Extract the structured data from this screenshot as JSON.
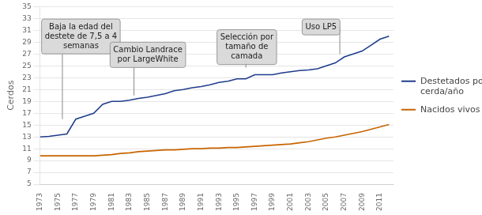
{
  "chart_data": {
    "type": "line",
    "x": [
      1973,
      1974,
      1975,
      1976,
      1977,
      1978,
      1979,
      1980,
      1981,
      1982,
      1983,
      1984,
      1985,
      1986,
      1987,
      1988,
      1989,
      1990,
      1991,
      1992,
      1993,
      1994,
      1995,
      1996,
      1997,
      1998,
      1999,
      2000,
      2001,
      2002,
      2003,
      2004,
      2005,
      2006,
      2007,
      2008,
      2009,
      2010,
      2011,
      2012
    ],
    "series": [
      {
        "name": "Destetados por\ncerda/año",
        "color": "#1F3D8C",
        "values": [
          13.0,
          13.1,
          13.3,
          13.5,
          16.0,
          16.5,
          17.0,
          18.5,
          19.0,
          19.0,
          19.2,
          19.5,
          19.7,
          20.0,
          20.3,
          20.8,
          21.0,
          21.3,
          21.5,
          21.8,
          22.2,
          22.4,
          22.8,
          22.8,
          23.5,
          23.5,
          23.5,
          23.8,
          24.0,
          24.2,
          24.3,
          24.5,
          25.0,
          25.5,
          26.5,
          27.0,
          27.5,
          28.5,
          29.5,
          30.0
        ]
      },
      {
        "name": "Nacidos vivos",
        "color": "#C86400",
        "values": [
          9.8,
          9.8,
          9.8,
          9.8,
          9.8,
          9.8,
          9.8,
          9.9,
          10.0,
          10.2,
          10.3,
          10.5,
          10.6,
          10.7,
          10.8,
          10.8,
          10.9,
          11.0,
          11.0,
          11.1,
          11.1,
          11.2,
          11.2,
          11.3,
          11.4,
          11.5,
          11.6,
          11.7,
          11.8,
          12.0,
          12.2,
          12.5,
          12.8,
          13.0,
          13.3,
          13.6,
          13.9,
          14.3,
          14.7,
          15.1
        ]
      }
    ],
    "ylabel": "Cerdos",
    "xlim": [
      1973,
      2012.5
    ],
    "xticks": [
      1973,
      1975,
      1977,
      1979,
      1981,
      1983,
      1985,
      1987,
      1989,
      1991,
      1993,
      1995,
      1997,
      1999,
      2001,
      2003,
      2005,
      2007,
      2009,
      2011
    ],
    "ylim": [
      5,
      35
    ],
    "yticks": [
      5,
      7,
      9,
      11,
      13,
      15,
      17,
      19,
      21,
      23,
      25,
      27,
      29,
      31,
      33,
      35
    ],
    "grid": "y",
    "legend": "right",
    "annotations": [
      {
        "text": "Baja la edad del\ndestete de 7,5 a 4\nsemanas",
        "x": 1975.5,
        "y": 16.0
      },
      {
        "text": "Cambio Landrace\npor LargeWhite",
        "x": 1983.5,
        "y": 20.0
      },
      {
        "text": "Selección por\ntamaño de\ncamada",
        "x": 1996.0,
        "y": 24.7
      },
      {
        "text": "Uso LP5",
        "x": 2006.5,
        "y": 27.0
      }
    ]
  }
}
